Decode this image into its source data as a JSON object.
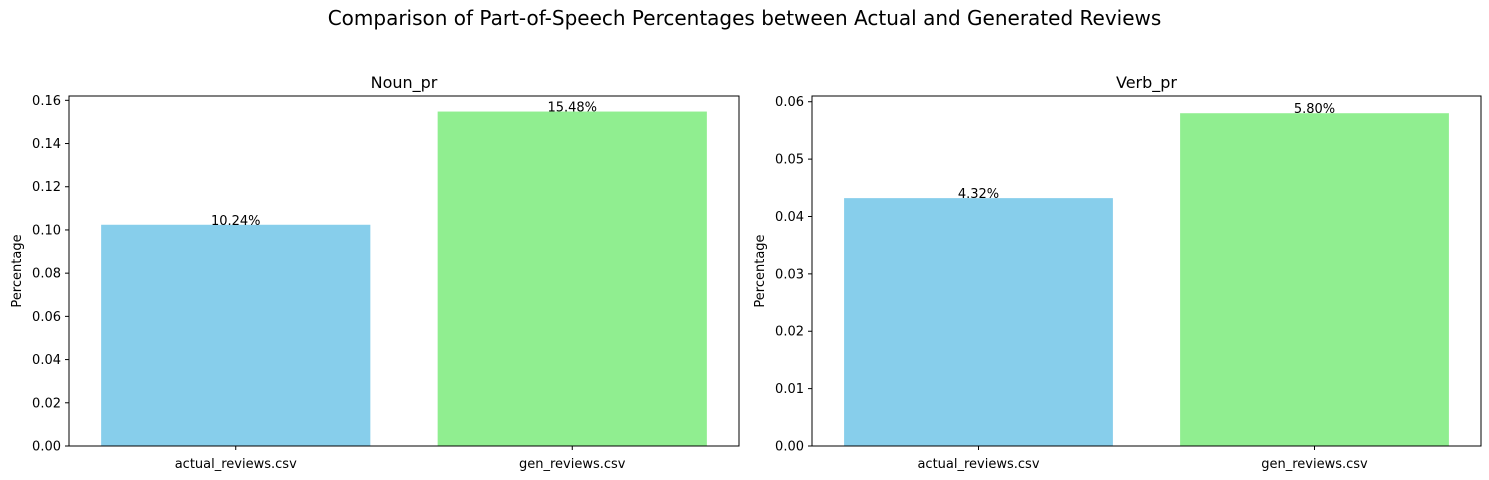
{
  "figure": {
    "title": "Comparison of Part-of-Speech Percentages between Actual and Generated Reviews"
  },
  "chart_data": [
    {
      "type": "bar",
      "title": "Noun_pr",
      "xlabel": "",
      "ylabel": "Percentage",
      "categories": [
        "actual_reviews.csv",
        "gen_reviews.csv"
      ],
      "values": [
        0.1024,
        0.1548
      ],
      "bar_labels": [
        "10.24%",
        "15.48%"
      ],
      "colors": [
        "#87CEEB",
        "#90EE90"
      ],
      "ylim": [
        0,
        0.162
      ],
      "yticks": [
        0.0,
        0.02,
        0.04,
        0.06,
        0.08,
        0.1,
        0.12,
        0.14,
        0.16
      ],
      "ytick_labels": [
        "0.00",
        "0.02",
        "0.04",
        "0.06",
        "0.08",
        "0.10",
        "0.12",
        "0.14",
        "0.16"
      ],
      "grid": false
    },
    {
      "type": "bar",
      "title": "Verb_pr",
      "xlabel": "",
      "ylabel": "Percentage",
      "categories": [
        "actual_reviews.csv",
        "gen_reviews.csv"
      ],
      "values": [
        0.0432,
        0.058
      ],
      "bar_labels": [
        "4.32%",
        "5.80%"
      ],
      "colors": [
        "#87CEEB",
        "#90EE90"
      ],
      "ylim": [
        0,
        0.061
      ],
      "yticks": [
        0.0,
        0.01,
        0.02,
        0.03,
        0.04,
        0.05,
        0.06
      ],
      "ytick_labels": [
        "0.00",
        "0.01",
        "0.02",
        "0.03",
        "0.04",
        "0.05",
        "0.06"
      ],
      "grid": false
    }
  ]
}
